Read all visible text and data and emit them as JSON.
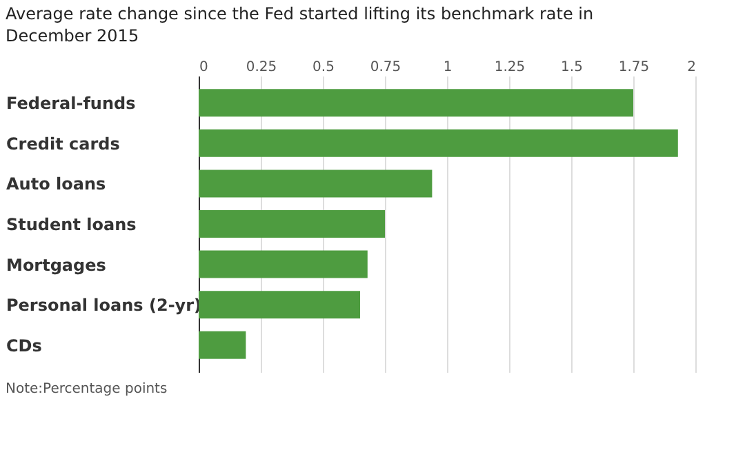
{
  "chart_data": {
    "type": "bar",
    "orientation": "horizontal",
    "title": "Average rate change since the Fed started lifting its benchmark rate in December 2015",
    "categories": [
      "Federal-funds",
      "Credit cards",
      "Auto loans",
      "Student loans",
      "Mortgages",
      "Personal loans (2-yr)",
      "CDs"
    ],
    "values": [
      1.75,
      1.93,
      0.94,
      0.75,
      0.68,
      0.65,
      0.19
    ],
    "color": "#4e9c40",
    "xlim": [
      0,
      2
    ],
    "xticks": [
      0,
      0.25,
      0.5,
      0.75,
      1,
      1.25,
      1.5,
      1.75,
      2
    ],
    "grid": "x",
    "annotations": [
      "Note:Percentage points"
    ]
  }
}
